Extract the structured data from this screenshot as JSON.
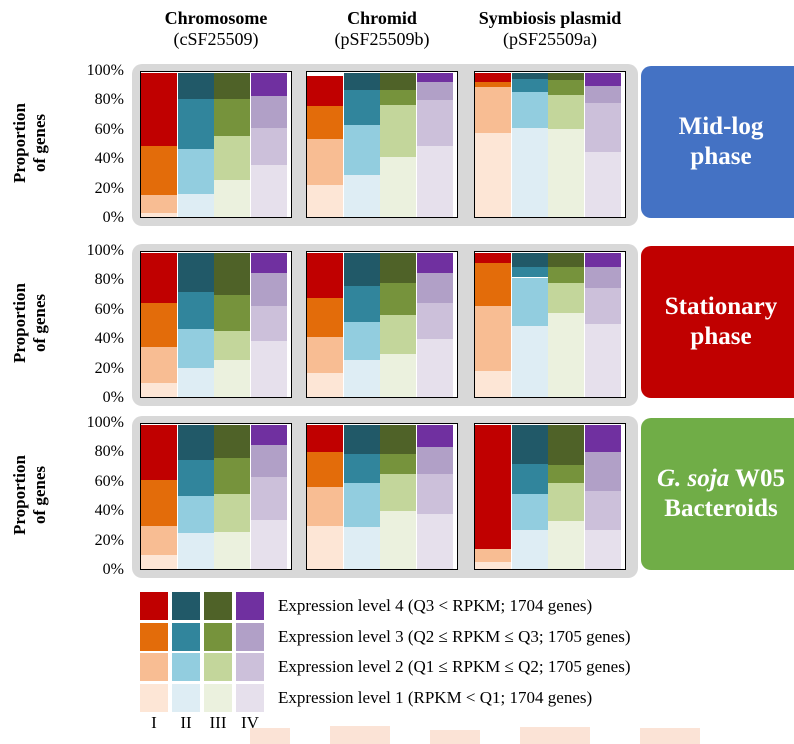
{
  "columns": [
    {
      "title": "Chromosome",
      "subtitle": "(cSF25509)"
    },
    {
      "title": "Chromid",
      "subtitle": "(pSF25509b)"
    },
    {
      "title": "Symbiosis plasmid",
      "subtitle": "(pSF25509a)"
    }
  ],
  "ylabel_line1": "Proportion",
  "ylabel_line2": "of genes",
  "yticks": [
    "100%",
    "80%",
    "60%",
    "40%",
    "20%",
    "0%"
  ],
  "phases": [
    {
      "line1": "Mid-log",
      "line1_italic": "",
      "line2": "phase",
      "color": "#4472c4"
    },
    {
      "line1": "Stationary",
      "line1_italic": "",
      "line2": "phase",
      "color": "#c00000"
    },
    {
      "line1": " W05",
      "line1_italic": "G. soja",
      "line2": "Bacteroids",
      "color": "#70ad47"
    }
  ],
  "legend": {
    "items": [
      "Expression level 4 (Q3 < RPKM; 1704 genes)",
      "Expression level 3 (Q2 ≤ RPKM ≤ Q3; 1705 genes)",
      "Expression level 2 (Q1 ≤ RPKM ≤  Q2; 1705 genes)",
      "Expression level 1 (RPKM < Q1; 1704 genes)"
    ],
    "groups": [
      "I",
      "II",
      "III",
      "IV"
    ]
  },
  "colors": {
    "I": [
      "#fde6d6",
      "#f8bd93",
      "#e36c0a",
      "#c00000"
    ],
    "II": [
      "#deedf4",
      "#92cddf",
      "#31859c",
      "#215968"
    ],
    "III": [
      "#ebf1de",
      "#c3d69b",
      "#76933c",
      "#4f6228"
    ],
    "IV": [
      "#e6e0ec",
      "#ccc0da",
      "#b1a0c7",
      "#7030a0"
    ]
  },
  "chart_data": {
    "type": "bar",
    "stacked": true,
    "categories": [
      "I",
      "II",
      "III",
      "IV"
    ],
    "stack_order": [
      "Expression level 1",
      "Expression level 2",
      "Expression level 3",
      "Expression level 4"
    ],
    "ylim": [
      0,
      100
    ],
    "panels": [
      {
        "row": "Mid-log phase",
        "col": "Chromosome",
        "bars": [
          [
            3,
            12,
            34,
            51
          ],
          [
            16,
            31,
            35,
            18
          ],
          [
            26,
            30,
            26,
            18
          ],
          [
            36,
            26,
            22,
            16
          ]
        ]
      },
      {
        "row": "Mid-log phase",
        "col": "Chromid",
        "bars": [
          [
            22,
            32,
            23,
            21
          ],
          [
            29,
            35,
            24,
            12
          ],
          [
            42,
            36,
            10,
            12
          ],
          [
            49,
            32,
            13,
            6
          ]
        ]
      },
      {
        "row": "Mid-log phase",
        "col": "Symbiosis plasmid",
        "bars": [
          [
            58,
            32,
            4,
            6
          ],
          [
            62,
            25,
            9,
            4
          ],
          [
            61,
            24,
            10,
            5
          ],
          [
            45,
            34,
            12,
            9
          ]
        ]
      },
      {
        "row": "Stationary phase",
        "col": "Chromosome",
        "bars": [
          [
            10,
            25,
            30,
            35
          ],
          [
            20,
            27,
            26,
            27
          ],
          [
            26,
            20,
            25,
            29
          ],
          [
            39,
            24,
            23,
            14
          ]
        ]
      },
      {
        "row": "Stationary phase",
        "col": "Chromid",
        "bars": [
          [
            17,
            25,
            27,
            31
          ],
          [
            26,
            26,
            25,
            23
          ],
          [
            30,
            27,
            22,
            21
          ],
          [
            40,
            25,
            21,
            14
          ]
        ]
      },
      {
        "row": "Stationary phase",
        "col": "Symbiosis plasmid",
        "bars": [
          [
            18,
            45,
            30,
            7
          ],
          [
            49,
            34,
            7,
            10
          ],
          [
            58,
            21,
            11,
            10
          ],
          [
            51,
            25,
            14,
            10
          ]
        ]
      },
      {
        "row": "G. soja W05 Bacteroids",
        "col": "Chromosome",
        "bars": [
          [
            10,
            20,
            32,
            38
          ],
          [
            25,
            26,
            25,
            24
          ],
          [
            26,
            26,
            25,
            23
          ],
          [
            34,
            30,
            22,
            14
          ]
        ]
      },
      {
        "row": "G. soja W05 Bacteroids",
        "col": "Chromid",
        "bars": [
          [
            30,
            27,
            24,
            19
          ],
          [
            29,
            31,
            20,
            20
          ],
          [
            40,
            26,
            14,
            20
          ],
          [
            38,
            28,
            19,
            15
          ]
        ]
      },
      {
        "row": "G. soja W05 Bacteroids",
        "col": "Symbiosis plasmid",
        "bars": [
          [
            5,
            9,
            0,
            86
          ],
          [
            27,
            25,
            21,
            27
          ],
          [
            33,
            27,
            12,
            28
          ],
          [
            27,
            27,
            27,
            19
          ]
        ]
      }
    ]
  }
}
